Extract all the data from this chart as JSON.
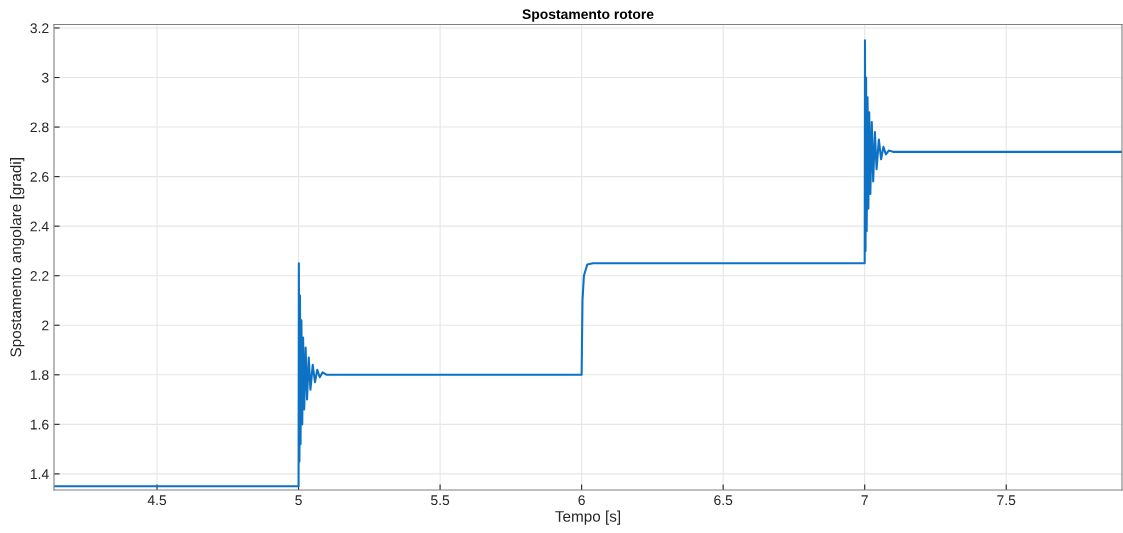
{
  "chart_data": {
    "type": "line",
    "title": "Spostamento rotore",
    "xlabel": "Tempo [s]",
    "ylabel": "Spostamento angolare [gradi]",
    "xlim": [
      4.136,
      7.909
    ],
    "xticks": [
      4.5,
      5,
      5.5,
      6,
      6.5,
      7,
      7.5
    ],
    "ylim": [
      1.335,
      3.214
    ],
    "yticks": [
      1.4,
      1.6,
      1.8,
      2,
      2.2,
      2.4,
      2.6,
      2.8,
      3,
      3.2
    ],
    "grid": true,
    "line_style": "solid",
    "series": [
      {
        "color": "#0e72c4",
        "x": [
          4.136,
          5.0,
          5.001,
          5.003,
          5.005,
          5.007,
          5.01,
          5.013,
          5.016,
          5.02,
          5.025,
          5.03,
          5.036,
          5.042,
          5.05,
          5.058,
          5.066,
          5.075,
          5.085,
          5.1,
          5.999,
          6.0,
          6.003,
          6.008,
          6.02,
          6.04,
          6.999,
          7.0,
          7.001,
          7.003,
          7.005,
          7.007,
          7.01,
          7.013,
          7.016,
          7.02,
          7.025,
          7.03,
          7.036,
          7.042,
          7.05,
          7.058,
          7.066,
          7.075,
          7.085,
          7.1,
          7.909
        ],
        "values": [
          1.35,
          1.35,
          2.25,
          1.45,
          2.12,
          1.52,
          2.02,
          1.6,
          1.95,
          1.66,
          1.91,
          1.7,
          1.87,
          1.74,
          1.84,
          1.77,
          1.82,
          1.79,
          1.81,
          1.8,
          1.8,
          1.8,
          2.1,
          2.2,
          2.245,
          2.25,
          2.25,
          2.25,
          3.15,
          2.3,
          3.0,
          2.38,
          2.92,
          2.47,
          2.86,
          2.53,
          2.82,
          2.58,
          2.78,
          2.63,
          2.75,
          2.67,
          2.72,
          2.69,
          2.705,
          2.7,
          2.7
        ]
      }
    ]
  }
}
